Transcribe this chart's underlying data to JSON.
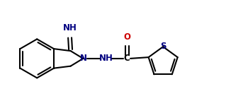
{
  "bg_color": "#ffffff",
  "bond_color": "#000000",
  "atom_colors": {
    "N": "#000080",
    "O": "#cc0000",
    "S": "#000080",
    "C": "#000000"
  },
  "figsize": [
    3.43,
    1.53
  ],
  "dpi": 100
}
